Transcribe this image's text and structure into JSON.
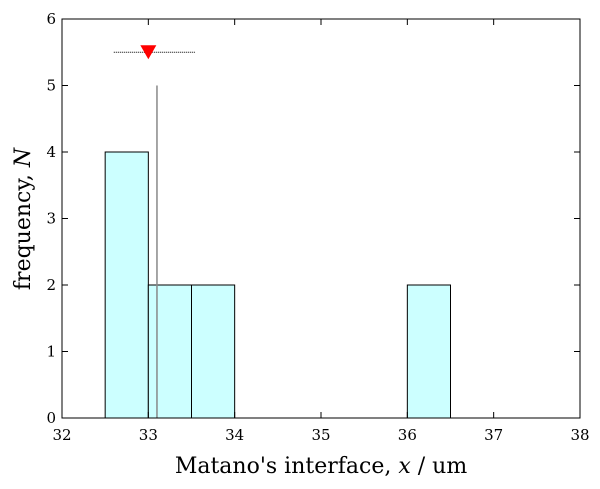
{
  "chart_data": {
    "type": "bar",
    "subtype": "histogram",
    "xlim": [
      32,
      38
    ],
    "ylim": [
      0,
      6
    ],
    "xticks": [
      32,
      33,
      34,
      35,
      36,
      37,
      38
    ],
    "yticks": [
      0,
      1,
      2,
      3,
      4,
      5,
      6
    ],
    "xlabel": {
      "prefix": "Matano's interface, ",
      "var": "x",
      "suffix": " / um"
    },
    "ylabel": {
      "prefix": "frequency, ",
      "var": "N"
    },
    "bins": [
      {
        "x0": 32.5,
        "x1": 33.0,
        "count": 4
      },
      {
        "x0": 33.0,
        "x1": 33.5,
        "count": 2
      },
      {
        "x0": 33.5,
        "x1": 34.0,
        "count": 2
      },
      {
        "x0": 36.0,
        "x1": 36.5,
        "count": 2
      }
    ],
    "bar_color": "#ccffff",
    "mean_marker": {
      "x": 33.0,
      "y": 5.5,
      "error_low": 32.6,
      "error_high": 33.55,
      "color": "#ff0000"
    },
    "reference_line": {
      "x": 33.1,
      "y0": 0,
      "y1": 5.0,
      "color": "#888888"
    },
    "grid": false,
    "legend": "none"
  }
}
